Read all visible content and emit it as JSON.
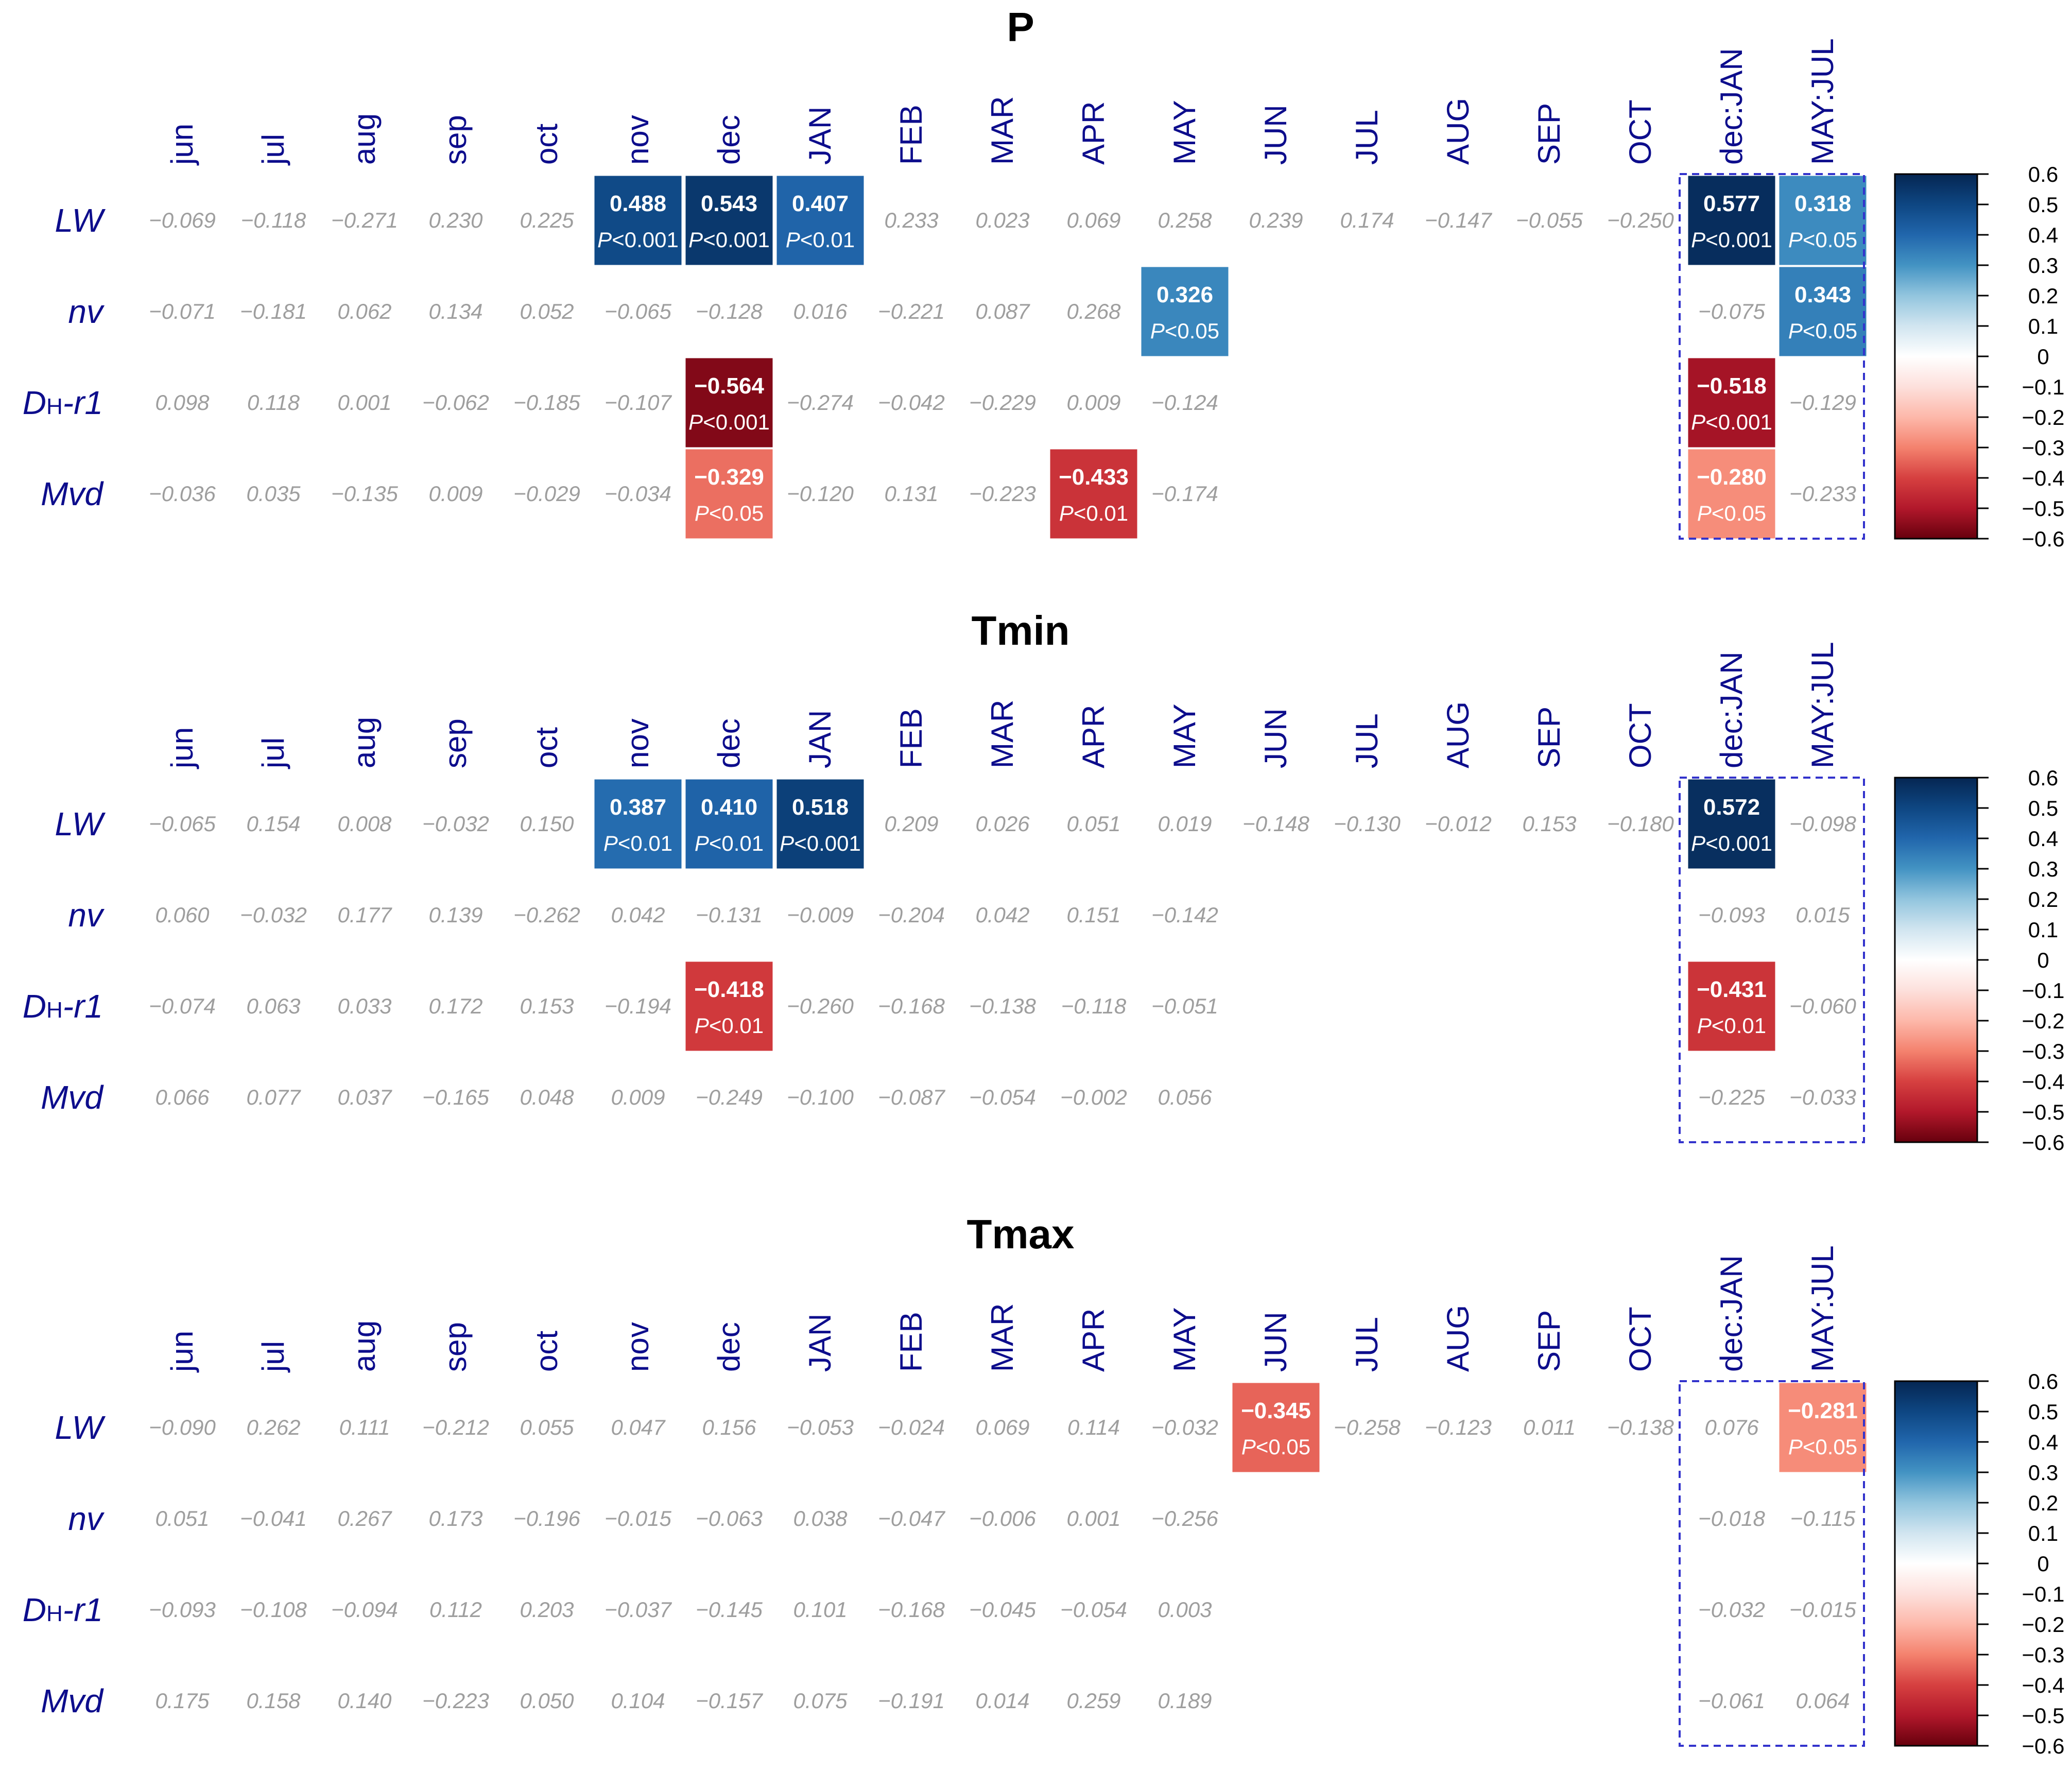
{
  "chart_data": {
    "type": "heatmap",
    "columns": [
      "jun",
      "jul",
      "aug",
      "sep",
      "oct",
      "nov",
      "dec",
      "JAN",
      "FEB",
      "MAR",
      "APR",
      "MAY",
      "JUN",
      "JUL",
      "AUG",
      "SEP",
      "OCT",
      "dec:JAN",
      "MAY:JUL"
    ],
    "rows": [
      {
        "main": "LW",
        "sub": ""
      },
      {
        "main": "nv",
        "sub": ""
      },
      {
        "main": "D",
        "sub": "H",
        "tail": "-r1"
      },
      {
        "main": "Mvd",
        "sub": ""
      }
    ],
    "colorbar": {
      "range": [
        -0.6,
        0.6
      ],
      "ticks": [
        "0.6",
        "0.5",
        "0.4",
        "0.3",
        "0.2",
        "0.1",
        "0",
        "−0.1",
        "−0.2",
        "−0.3",
        "−0.4",
        "−0.5",
        "−0.6"
      ]
    },
    "panels": [
      {
        "title": "P",
        "values": [
          [
            "−0.069",
            "−0.118",
            "−0.271",
            "0.230",
            "0.225",
            "0.488",
            "0.543",
            "0.407",
            "0.233",
            "0.023",
            "0.069",
            "0.258",
            "0.239",
            "0.174",
            "−0.147",
            "−0.055",
            "−0.250",
            "0.577",
            "0.318"
          ],
          [
            "−0.071",
            "−0.181",
            "0.062",
            "0.134",
            "0.052",
            "−0.065",
            "−0.128",
            "0.016",
            "−0.221",
            "0.087",
            "0.268",
            "0.326",
            "",
            "",
            "",
            "",
            "",
            "−0.075",
            "0.343"
          ],
          [
            "0.098",
            "0.118",
            "0.001",
            "−0.062",
            "−0.185",
            "−0.107",
            "−0.564",
            "−0.274",
            "−0.042",
            "−0.229",
            "0.009",
            "−0.124",
            "",
            "",
            "",
            "",
            "",
            "−0.518",
            "−0.129"
          ],
          [
            "−0.036",
            "0.035",
            "−0.135",
            "0.009",
            "−0.029",
            "−0.034",
            "−0.329",
            "−0.120",
            "0.131",
            "−0.223",
            "−0.433",
            "−0.174",
            "",
            "",
            "",
            "",
            "",
            "−0.280",
            "−0.233"
          ]
        ],
        "significant": [
          {
            "row": 0,
            "col": 5,
            "value": 0.488,
            "p": "<0.001"
          },
          {
            "row": 0,
            "col": 6,
            "value": 0.543,
            "p": "<0.001"
          },
          {
            "row": 0,
            "col": 7,
            "value": 0.407,
            "p": "<0.01"
          },
          {
            "row": 0,
            "col": 17,
            "value": 0.577,
            "p": "<0.001"
          },
          {
            "row": 0,
            "col": 18,
            "value": 0.318,
            "p": "<0.05"
          },
          {
            "row": 1,
            "col": 11,
            "value": 0.326,
            "p": "<0.05"
          },
          {
            "row": 1,
            "col": 18,
            "value": 0.343,
            "p": "<0.05"
          },
          {
            "row": 2,
            "col": 6,
            "value": -0.564,
            "p": "<0.001"
          },
          {
            "row": 2,
            "col": 17,
            "value": -0.518,
            "p": "<0.001"
          },
          {
            "row": 3,
            "col": 6,
            "value": -0.329,
            "p": "<0.05"
          },
          {
            "row": 3,
            "col": 10,
            "value": -0.433,
            "p": "<0.01"
          },
          {
            "row": 3,
            "col": 17,
            "value": -0.28,
            "p": "<0.05"
          }
        ]
      },
      {
        "title": "Tmin",
        "values": [
          [
            "−0.065",
            "0.154",
            "0.008",
            "−0.032",
            "0.150",
            "0.387",
            "0.410",
            "0.518",
            "0.209",
            "0.026",
            "0.051",
            "0.019",
            "−0.148",
            "−0.130",
            "−0.012",
            "0.153",
            "−0.180",
            "0.572",
            "−0.098"
          ],
          [
            "0.060",
            "−0.032",
            "0.177",
            "0.139",
            "−0.262",
            "0.042",
            "−0.131",
            "−0.009",
            "−0.204",
            "0.042",
            "0.151",
            "−0.142",
            "",
            "",
            "",
            "",
            "",
            "−0.093",
            "0.015"
          ],
          [
            "−0.074",
            "0.063",
            "0.033",
            "0.172",
            "0.153",
            "−0.194",
            "−0.418",
            "−0.260",
            "−0.168",
            "−0.138",
            "−0.118",
            "−0.051",
            "",
            "",
            "",
            "",
            "",
            "−0.431",
            "−0.060"
          ],
          [
            "0.066",
            "0.077",
            "0.037",
            "−0.165",
            "0.048",
            "0.009",
            "−0.249",
            "−0.100",
            "−0.087",
            "−0.054",
            "−0.002",
            "0.056",
            "",
            "",
            "",
            "",
            "",
            "−0.225",
            "−0.033"
          ]
        ],
        "significant": [
          {
            "row": 0,
            "col": 5,
            "value": 0.387,
            "p": "<0.01"
          },
          {
            "row": 0,
            "col": 6,
            "value": 0.41,
            "p": "<0.01"
          },
          {
            "row": 0,
            "col": 7,
            "value": 0.518,
            "p": "<0.001"
          },
          {
            "row": 0,
            "col": 17,
            "value": 0.572,
            "p": "<0.001"
          },
          {
            "row": 2,
            "col": 6,
            "value": -0.418,
            "p": "<0.01"
          },
          {
            "row": 2,
            "col": 17,
            "value": -0.431,
            "p": "<0.01"
          }
        ]
      },
      {
        "title": "Tmax",
        "values": [
          [
            "−0.090",
            "0.262",
            "0.111",
            "−0.212",
            "0.055",
            "0.047",
            "0.156",
            "−0.053",
            "−0.024",
            "0.069",
            "0.114",
            "−0.032",
            "−0.345",
            "−0.258",
            "−0.123",
            "0.011",
            "−0.138",
            "0.076",
            "−0.281"
          ],
          [
            "0.051",
            "−0.041",
            "0.267",
            "0.173",
            "−0.196",
            "−0.015",
            "−0.063",
            "0.038",
            "−0.047",
            "−0.006",
            "0.001",
            "−0.256",
            "",
            "",
            "",
            "",
            "",
            "−0.018",
            "−0.115"
          ],
          [
            "−0.093",
            "−0.108",
            "−0.094",
            "0.112",
            "0.203",
            "−0.037",
            "−0.145",
            "0.101",
            "−0.168",
            "−0.045",
            "−0.054",
            "0.003",
            "",
            "",
            "",
            "",
            "",
            "−0.032",
            "−0.015"
          ],
          [
            "0.175",
            "0.158",
            "0.140",
            "−0.223",
            "0.050",
            "0.104",
            "−0.157",
            "0.075",
            "−0.191",
            "0.014",
            "0.259",
            "0.189",
            "",
            "",
            "",
            "",
            "",
            "−0.061",
            "0.064"
          ]
        ],
        "significant": [
          {
            "row": 0,
            "col": 12,
            "value": -0.345,
            "p": "<0.05"
          },
          {
            "row": 0,
            "col": 18,
            "value": -0.281,
            "p": "<0.05"
          }
        ]
      }
    ]
  }
}
